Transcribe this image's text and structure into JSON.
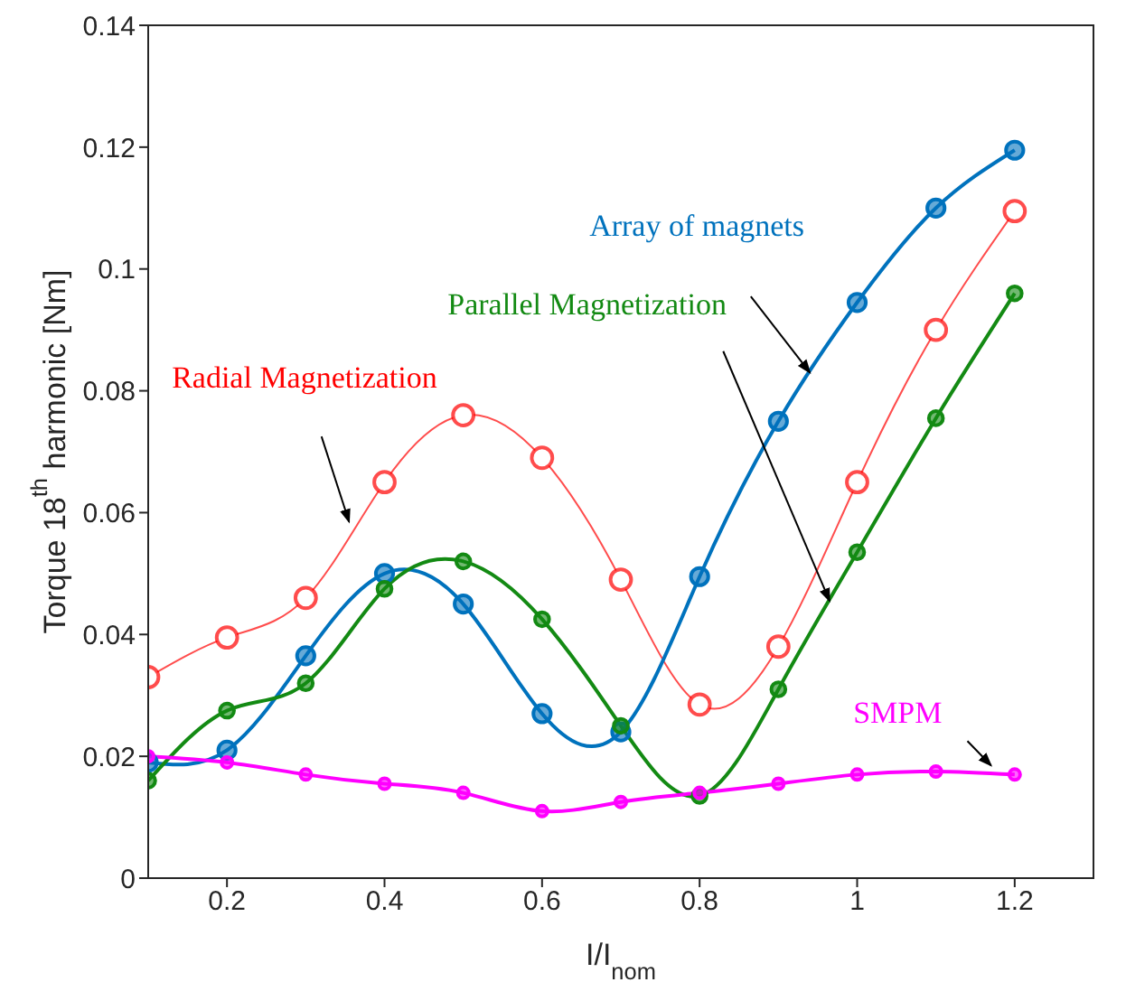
{
  "chart_data": {
    "type": "line",
    "xlabel": "I/I$_{nom}$",
    "ylabel": "Torque 18$^{th}$ harmonic [Nm]",
    "x": [
      0.1,
      0.2,
      0.3,
      0.4,
      0.5,
      0.6,
      0.7,
      0.8,
      0.9,
      1.0,
      1.1,
      1.2
    ],
    "xlim": [
      0.1,
      1.3
    ],
    "xticks": [
      0.2,
      0.4,
      0.6,
      0.8,
      1,
      1.2
    ],
    "ylim": [
      0,
      0.14
    ],
    "yticks": [
      0,
      0.02,
      0.04,
      0.06,
      0.08,
      0.1,
      0.12,
      0.14
    ],
    "grid": false,
    "legend": false,
    "marker": "circle",
    "line_style": "solid",
    "series": [
      {
        "name": "Radial Magnetization",
        "color": "#ff0000",
        "values": [
          0.033,
          0.0395,
          0.046,
          0.065,
          0.076,
          0.069,
          0.049,
          0.0285,
          0.038,
          0.065,
          0.09,
          0.1095
        ]
      },
      {
        "name": "Array of magnets",
        "color": "#0072bd",
        "values": [
          0.019,
          0.021,
          0.0365,
          0.05,
          0.045,
          0.027,
          0.024,
          0.0495,
          0.075,
          0.0945,
          0.11,
          0.1195
        ]
      },
      {
        "name": "Parallel Magnetization",
        "color": "#138a13",
        "values": [
          0.016,
          0.0275,
          0.032,
          0.0475,
          0.052,
          0.0425,
          0.025,
          0.0135,
          0.031,
          0.0535,
          0.0755,
          0.096
        ]
      },
      {
        "name": "SMPM",
        "color": "#ff00ff",
        "values": [
          0.02,
          0.019,
          0.017,
          0.0155,
          0.014,
          0.011,
          0.0125,
          0.014,
          0.0155,
          0.017,
          0.0175,
          0.017
        ]
      }
    ]
  }
}
